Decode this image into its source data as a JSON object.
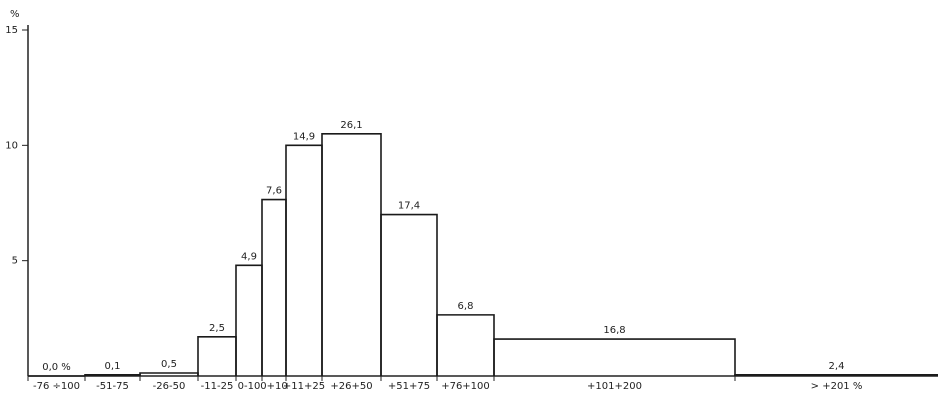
{
  "chart_data": {
    "type": "step-histogram",
    "y_unit": "%",
    "categories": [
      "-76 ÷100",
      "-51-75",
      "-26-50",
      "-11-25",
      "0-10",
      "0+10",
      "+11+25",
      "+26+50",
      "+51+75",
      "+76+100",
      "+101+200",
      "> +201 %"
    ],
    "values": [
      0,
      0.05,
      0.13,
      1.7,
      4.8,
      7.65,
      10.0,
      10.5,
      7.0,
      2.65,
      1.6,
      0.05
    ],
    "shares": [
      "0,0 %",
      "0,1",
      "0,5",
      "2,5",
      "4,9",
      "7,6",
      "14,9",
      "26,1",
      "17,4",
      "6,8",
      "16,8",
      "2,4"
    ],
    "color": "#1a1a1a",
    "ylim": [
      0,
      15
    ],
    "yticks": [
      5,
      10,
      15
    ]
  }
}
